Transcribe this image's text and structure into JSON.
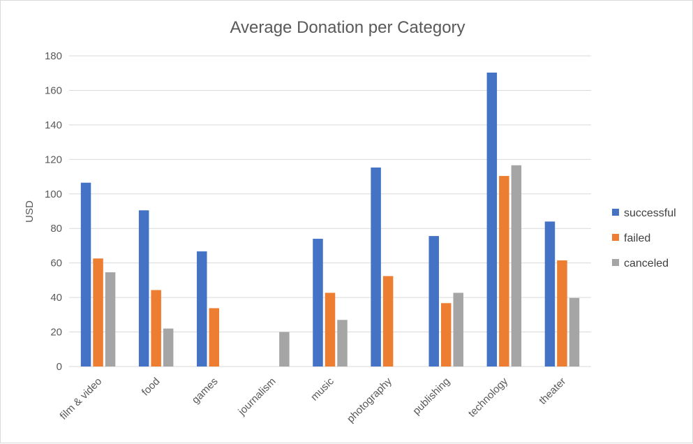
{
  "chart_data": {
    "type": "bar",
    "title": "Average Donation per Category",
    "xlabel": "",
    "ylabel": "USD",
    "ylim": [
      0,
      180
    ],
    "yticks": [
      0,
      20,
      40,
      60,
      80,
      100,
      120,
      140,
      160,
      180
    ],
    "grid": true,
    "legend_position": "right",
    "categories": [
      "film & video",
      "food",
      "games",
      "journalism",
      "music",
      "photography",
      "publishing",
      "technology",
      "theater"
    ],
    "series": [
      {
        "name": "successful",
        "color": "#4472c4",
        "values": [
          106.5,
          90.5,
          66.7,
          0,
          74,
          115.3,
          75.6,
          170.3,
          84
        ]
      },
      {
        "name": "failed",
        "color": "#ed7d31",
        "values": [
          62.6,
          44.3,
          33.8,
          0,
          42.7,
          52.4,
          36.7,
          110.4,
          61.5
        ]
      },
      {
        "name": "canceled",
        "color": "#a5a5a5",
        "values": [
          54.6,
          22,
          0,
          20,
          27,
          0,
          42.7,
          116.6,
          39.7
        ]
      }
    ]
  }
}
